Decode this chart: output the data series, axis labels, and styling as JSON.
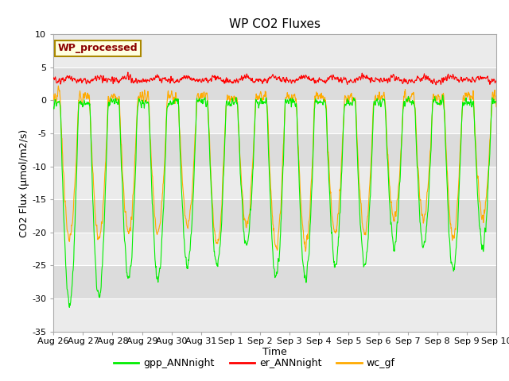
{
  "title": "WP CO2 Fluxes",
  "xlabel": "Time",
  "ylabel": "CO2 Flux (μmol/m2/s)",
  "ylim": [
    -35,
    10
  ],
  "yticks": [
    -35,
    -30,
    -25,
    -20,
    -15,
    -10,
    -5,
    0,
    5,
    10
  ],
  "bg_color": "#ffffff",
  "plot_bg_color": "#ffffff",
  "gpp_color": "#00ee00",
  "er_color": "#ff0000",
  "wc_color": "#ffaa00",
  "wp_label_color": "#8b0000",
  "wp_label_bg": "#ffffe0",
  "legend_labels": [
    "gpp_ANNnight",
    "er_ANNnight",
    "wc_gf"
  ],
  "n_days": 15,
  "points_per_day": 96,
  "day_labels": [
    "Aug 26",
    "Aug 27",
    "Aug 28",
    "Aug 29",
    "Aug 30",
    "Aug 31",
    "Sep 1",
    "Sep 2",
    "Sep 3",
    "Sep 4",
    "Sep 5",
    "Sep 6",
    "Sep 7",
    "Sep 8",
    "Sep 9",
    "Sep 10"
  ],
  "linewidth": 0.8,
  "band_colors": [
    "#f0f0f0",
    "#e0e0e0"
  ],
  "title_fontsize": 11,
  "label_fontsize": 9,
  "tick_fontsize": 8
}
